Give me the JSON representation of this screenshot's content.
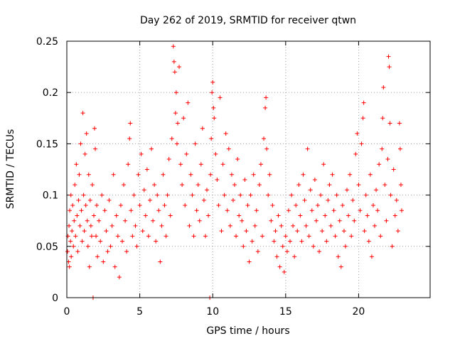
{
  "chart_data": {
    "type": "scatter",
    "title": "Day 262 of 2019, SRMTID for receiver qtwn",
    "xlabel": "GPS time / hours",
    "ylabel": "SRMTID / TECUs",
    "xlim": [
      0,
      24.9
    ],
    "ylim": [
      0,
      0.25
    ],
    "x_ticks": [
      0,
      5,
      10,
      15,
      20
    ],
    "x_tick_labels": [
      "0",
      "5",
      "10",
      "15",
      "20"
    ],
    "y_ticks": [
      0,
      0.05,
      0.1,
      0.15,
      0.2,
      0.25
    ],
    "y_tick_labels": [
      "0",
      "0.05",
      "0.1",
      "0.15",
      "0.2",
      "0.25"
    ],
    "grid": true,
    "marker": "+",
    "color": "#ff0000",
    "series": [
      {
        "name": "SRMTID",
        "points": [
          [
            0.05,
            0.045
          ],
          [
            0.08,
            0.06
          ],
          [
            0.12,
            0.035
          ],
          [
            0.15,
            0.07
          ],
          [
            0.18,
            0.03
          ],
          [
            0.2,
            0.085
          ],
          [
            0.25,
            0.055
          ],
          [
            0.28,
            0.1
          ],
          [
            0.3,
            0.04
          ],
          [
            0.35,
            0.065
          ],
          [
            0.4,
            0.09
          ],
          [
            0.45,
            0.05
          ],
          [
            0.5,
            0.075
          ],
          [
            0.55,
            0.11
          ],
          [
            0.6,
            0.06
          ],
          [
            0.65,
            0.13
          ],
          [
            0.7,
            0.08
          ],
          [
            0.75,
            0.045
          ],
          [
            0.8,
            0.095
          ],
          [
            0.85,
            0.12
          ],
          [
            0.9,
            0.07
          ],
          [
            0.95,
            0.15
          ],
          [
            1.0,
            0.085
          ],
          [
            1.05,
            0.055
          ],
          [
            1.1,
            0.18
          ],
          [
            1.15,
            0.1
          ],
          [
            1.2,
            0.065
          ],
          [
            1.25,
            0.14
          ],
          [
            1.3,
            0.09
          ],
          [
            1.35,
            0.16
          ],
          [
            1.4,
            0.075
          ],
          [
            1.45,
            0.05
          ],
          [
            1.5,
            0.12
          ],
          [
            1.55,
            0.03
          ],
          [
            1.6,
            0.095
          ],
          [
            1.65,
            0.07
          ],
          [
            1.7,
            0.06
          ],
          [
            1.75,
            0.11
          ],
          [
            1.8,
            0.0
          ],
          [
            1.85,
            0.08
          ],
          [
            1.9,
            0.165
          ],
          [
            1.95,
            0.145
          ],
          [
            2.0,
            0.06
          ],
          [
            2.05,
            0.09
          ],
          [
            2.1,
            0.04
          ],
          [
            2.2,
            0.075
          ],
          [
            2.3,
            0.055
          ],
          [
            2.4,
            0.1
          ],
          [
            2.5,
            0.035
          ],
          [
            2.6,
            0.085
          ],
          [
            2.7,
            0.065
          ],
          [
            2.8,
            0.045
          ],
          [
            2.9,
            0.095
          ],
          [
            3.0,
            0.05
          ],
          [
            3.1,
            0.07
          ],
          [
            3.2,
            0.12
          ],
          [
            3.3,
            0.03
          ],
          [
            3.4,
            0.08
          ],
          [
            3.5,
            0.06
          ],
          [
            3.6,
            0.02
          ],
          [
            3.7,
            0.09
          ],
          [
            3.8,
            0.055
          ],
          [
            3.9,
            0.11
          ],
          [
            4.0,
            0.075
          ],
          [
            4.1,
            0.045
          ],
          [
            4.2,
            0.13
          ],
          [
            4.3,
            0.155
          ],
          [
            4.35,
            0.17
          ],
          [
            4.4,
            0.085
          ],
          [
            4.5,
            0.06
          ],
          [
            4.6,
            0.1
          ],
          [
            4.7,
            0.07
          ],
          [
            4.8,
            0.05
          ],
          [
            4.9,
            0.12
          ],
          [
            5.0,
            0.09
          ],
          [
            5.1,
            0.14
          ],
          [
            5.2,
            0.065
          ],
          [
            5.3,
            0.105
          ],
          [
            5.4,
            0.08
          ],
          [
            5.5,
            0.125
          ],
          [
            5.6,
            0.06
          ],
          [
            5.7,
            0.095
          ],
          [
            5.8,
            0.145
          ],
          [
            5.9,
            0.075
          ],
          [
            6.0,
            0.11
          ],
          [
            6.1,
            0.055
          ],
          [
            6.2,
            0.1
          ],
          [
            6.3,
            0.085
          ],
          [
            6.4,
            0.035
          ],
          [
            6.5,
            0.07
          ],
          [
            6.6,
            0.12
          ],
          [
            6.7,
            0.09
          ],
          [
            6.8,
            0.06
          ],
          [
            6.9,
            0.1
          ],
          [
            7.0,
            0.135
          ],
          [
            7.1,
            0.08
          ],
          [
            7.2,
            0.155
          ],
          [
            7.3,
            0.245
          ],
          [
            7.35,
            0.23
          ],
          [
            7.4,
            0.22
          ],
          [
            7.45,
            0.18
          ],
          [
            7.5,
            0.2
          ],
          [
            7.55,
            0.15
          ],
          [
            7.6,
            0.17
          ],
          [
            7.7,
            0.225
          ],
          [
            7.8,
            0.13
          ],
          [
            7.9,
            0.11
          ],
          [
            8.0,
            0.175
          ],
          [
            8.1,
            0.09
          ],
          [
            8.2,
            0.14
          ],
          [
            8.3,
            0.19
          ],
          [
            8.4,
            0.07
          ],
          [
            8.5,
            0.12
          ],
          [
            8.6,
            0.1
          ],
          [
            8.7,
            0.06
          ],
          [
            8.8,
            0.15
          ],
          [
            8.9,
            0.085
          ],
          [
            9.0,
            0.11
          ],
          [
            9.1,
            0.075
          ],
          [
            9.2,
            0.13
          ],
          [
            9.3,
            0.165
          ],
          [
            9.4,
            0.095
          ],
          [
            9.5,
            0.06
          ],
          [
            9.6,
            0.105
          ],
          [
            9.7,
            0.08
          ],
          [
            9.8,
            0.0
          ],
          [
            9.85,
            0.12
          ],
          [
            9.9,
            0.155
          ],
          [
            9.95,
            0.2
          ],
          [
            10.0,
            0.21
          ],
          [
            10.05,
            0.185
          ],
          [
            10.1,
            0.175
          ],
          [
            10.2,
            0.14
          ],
          [
            10.3,
            0.115
          ],
          [
            10.4,
            0.09
          ],
          [
            10.5,
            0.195
          ],
          [
            10.6,
            0.065
          ],
          [
            10.7,
            0.13
          ],
          [
            10.8,
            0.1
          ],
          [
            10.9,
            0.16
          ],
          [
            11.0,
            0.085
          ],
          [
            11.1,
            0.145
          ],
          [
            11.2,
            0.07
          ],
          [
            11.3,
            0.12
          ],
          [
            11.4,
            0.095
          ],
          [
            11.5,
            0.11
          ],
          [
            11.6,
            0.06
          ],
          [
            11.7,
            0.135
          ],
          [
            11.8,
            0.08
          ],
          [
            11.9,
            0.1
          ],
          [
            12.0,
            0.075
          ],
          [
            12.1,
            0.05
          ],
          [
            12.2,
            0.115
          ],
          [
            12.3,
            0.065
          ],
          [
            12.4,
            0.09
          ],
          [
            12.5,
            0.035
          ],
          [
            12.6,
            0.1
          ],
          [
            12.7,
            0.055
          ],
          [
            12.8,
            0.12
          ],
          [
            12.9,
            0.07
          ],
          [
            13.0,
            0.085
          ],
          [
            13.1,
            0.045
          ],
          [
            13.2,
            0.11
          ],
          [
            13.3,
            0.13
          ],
          [
            13.4,
            0.06
          ],
          [
            13.5,
            0.155
          ],
          [
            13.6,
            0.185
          ],
          [
            13.65,
            0.195
          ],
          [
            13.7,
            0.145
          ],
          [
            13.8,
            0.1
          ],
          [
            13.9,
            0.12
          ],
          [
            14.0,
            0.075
          ],
          [
            14.1,
            0.09
          ],
          [
            14.2,
            0.055
          ],
          [
            14.3,
            0.065
          ],
          [
            14.4,
            0.04
          ],
          [
            14.5,
            0.08
          ],
          [
            14.6,
            0.03
          ],
          [
            14.7,
            0.07
          ],
          [
            14.8,
            0.05
          ],
          [
            14.9,
            0.025
          ],
          [
            15.0,
            0.06
          ],
          [
            15.1,
            0.045
          ],
          [
            15.2,
            0.085
          ],
          [
            15.3,
            0.055
          ],
          [
            15.4,
            0.1
          ],
          [
            15.5,
            0.07
          ],
          [
            15.6,
            0.04
          ],
          [
            15.7,
            0.09
          ],
          [
            15.8,
            0.065
          ],
          [
            15.9,
            0.11
          ],
          [
            16.0,
            0.08
          ],
          [
            16.1,
            0.055
          ],
          [
            16.2,
            0.12
          ],
          [
            16.3,
            0.095
          ],
          [
            16.4,
            0.07
          ],
          [
            16.5,
            0.145
          ],
          [
            16.6,
            0.06
          ],
          [
            16.7,
            0.105
          ],
          [
            16.8,
            0.085
          ],
          [
            16.9,
            0.05
          ],
          [
            17.0,
            0.115
          ],
          [
            17.1,
            0.075
          ],
          [
            17.2,
            0.09
          ],
          [
            17.3,
            0.045
          ],
          [
            17.4,
            0.1
          ],
          [
            17.5,
            0.065
          ],
          [
            17.6,
            0.13
          ],
          [
            17.7,
            0.08
          ],
          [
            17.8,
            0.055
          ],
          [
            17.9,
            0.095
          ],
          [
            18.0,
            0.11
          ],
          [
            18.1,
            0.07
          ],
          [
            18.2,
            0.12
          ],
          [
            18.3,
            0.085
          ],
          [
            18.4,
            0.06
          ],
          [
            18.5,
            0.1
          ],
          [
            18.6,
            0.04
          ],
          [
            18.7,
            0.075
          ],
          [
            18.8,
            0.03
          ],
          [
            18.9,
            0.09
          ],
          [
            19.0,
            0.065
          ],
          [
            19.1,
            0.05
          ],
          [
            19.2,
            0.105
          ],
          [
            19.3,
            0.08
          ],
          [
            19.4,
            0.12
          ],
          [
            19.5,
            0.06
          ],
          [
            19.6,
            0.095
          ],
          [
            19.7,
            0.075
          ],
          [
            19.8,
            0.14
          ],
          [
            19.9,
            0.16
          ],
          [
            20.0,
            0.11
          ],
          [
            20.1,
            0.085
          ],
          [
            20.2,
            0.15
          ],
          [
            20.3,
            0.175
          ],
          [
            20.35,
            0.19
          ],
          [
            20.4,
            0.065
          ],
          [
            20.5,
            0.1
          ],
          [
            20.6,
            0.08
          ],
          [
            20.7,
            0.055
          ],
          [
            20.8,
            0.12
          ],
          [
            20.9,
            0.04
          ],
          [
            21.0,
            0.09
          ],
          [
            21.1,
            0.07
          ],
          [
            21.2,
            0.105
          ],
          [
            21.3,
            0.085
          ],
          [
            21.4,
            0.13
          ],
          [
            21.5,
            0.06
          ],
          [
            21.6,
            0.145
          ],
          [
            21.65,
            0.175
          ],
          [
            21.7,
            0.205
          ],
          [
            21.8,
            0.11
          ],
          [
            21.9,
            0.075
          ],
          [
            22.0,
            0.135
          ],
          [
            22.05,
            0.235
          ],
          [
            22.1,
            0.225
          ],
          [
            22.15,
            0.17
          ],
          [
            22.2,
            0.1
          ],
          [
            22.3,
            0.05
          ],
          [
            22.4,
            0.125
          ],
          [
            22.5,
            0.08
          ],
          [
            22.6,
            0.095
          ],
          [
            22.7,
            0.065
          ],
          [
            22.8,
            0.17
          ],
          [
            22.85,
            0.145
          ],
          [
            22.9,
            0.11
          ],
          [
            22.95,
            0.085
          ]
        ]
      }
    ]
  }
}
